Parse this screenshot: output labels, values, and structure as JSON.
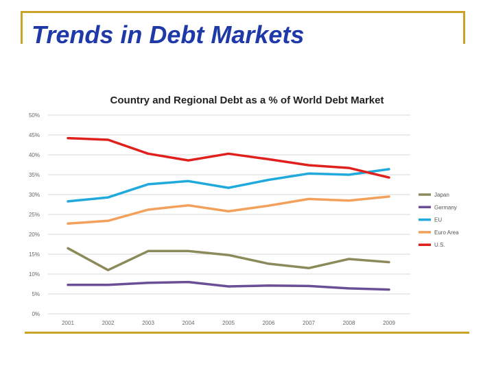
{
  "slide": {
    "title": "Trends in Debt Markets",
    "accent_color": "#c9a227",
    "title_color": "#1f3aa8"
  },
  "chart_data": {
    "type": "line",
    "title": "Country and Regional Debt as a % of World Debt Market",
    "xlabel": "",
    "ylabel": "",
    "x": [
      "2001",
      "2002",
      "2003",
      "2004",
      "2005",
      "2006",
      "2007",
      "2008",
      "2009"
    ],
    "yticks": [
      "0%",
      "5%",
      "10%",
      "15%",
      "20%",
      "25%",
      "30%",
      "35%",
      "40%",
      "45%",
      "50%"
    ],
    "ylim": [
      0,
      50
    ],
    "grid": true,
    "legend_position": "right",
    "series": [
      {
        "name": "Japan",
        "color": "#8c8a5a",
        "values": [
          16.5,
          11,
          15.8,
          15.8,
          14.8,
          12.6,
          11.5,
          13.8,
          13
        ]
      },
      {
        "name": "Germany",
        "color": "#6b4f96",
        "values": [
          7.3,
          7.3,
          7.8,
          8,
          6.9,
          7.1,
          7,
          6.4,
          6.1
        ]
      },
      {
        "name": "EU",
        "color": "#1fa9dc",
        "values": [
          28.3,
          29.3,
          32.6,
          33.4,
          31.7,
          33.7,
          35.3,
          35,
          36.4
        ]
      },
      {
        "name": "Euro Area",
        "color": "#f2a05a",
        "values": [
          22.7,
          23.4,
          26.2,
          27.3,
          25.8,
          27.2,
          28.9,
          28.5,
          29.5
        ]
      },
      {
        "name": "U.S.",
        "color": "#e0201c",
        "values": [
          44.2,
          43.8,
          40.3,
          38.6,
          40.3,
          38.9,
          37.4,
          36.7,
          34.3
        ]
      }
    ]
  }
}
